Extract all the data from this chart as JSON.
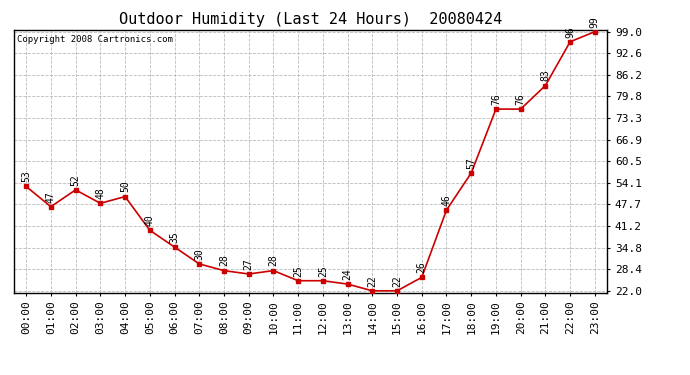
{
  "title": "Outdoor Humidity (Last 24 Hours)  20080424",
  "copyright": "Copyright 2008 Cartronics.com",
  "x_labels": [
    "00:00",
    "01:00",
    "02:00",
    "03:00",
    "04:00",
    "05:00",
    "06:00",
    "07:00",
    "08:00",
    "09:00",
    "10:00",
    "11:00",
    "12:00",
    "13:00",
    "14:00",
    "15:00",
    "16:00",
    "17:00",
    "18:00",
    "19:00",
    "20:00",
    "21:00",
    "22:00",
    "23:00"
  ],
  "y_values": [
    53,
    47,
    52,
    48,
    50,
    40,
    35,
    30,
    28,
    27,
    28,
    25,
    25,
    24,
    22,
    22,
    26,
    46,
    57,
    76,
    76,
    83,
    96,
    99
  ],
  "point_labels": [
    "53",
    "47",
    "52",
    "48",
    "50",
    "40",
    "35",
    "30",
    "28",
    "27",
    "28",
    "25",
    "25",
    "24",
    "22",
    "22",
    "26",
    "46",
    "57",
    "76",
    "76",
    "83",
    "96",
    "99"
  ],
  "line_color": "#cc0000",
  "marker_color": "#cc0000",
  "background_color": "#ffffff",
  "grid_color": "#bbbbbb",
  "plot_bg_color": "#ffffff",
  "y_min": 22.0,
  "y_max": 99.0,
  "y_ticks": [
    22.0,
    28.4,
    34.8,
    41.2,
    47.7,
    54.1,
    60.5,
    66.9,
    73.3,
    79.8,
    86.2,
    92.6,
    99.0
  ],
  "title_fontsize": 11,
  "label_fontsize": 7,
  "tick_fontsize": 8,
  "copyright_fontsize": 6.5
}
